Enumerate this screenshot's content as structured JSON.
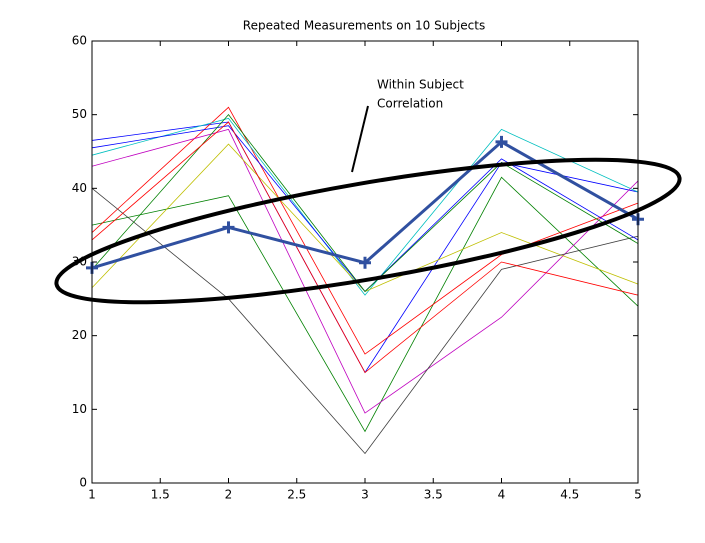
{
  "chart_data": {
    "type": "line",
    "title": "Repeated Measurements on 10 Subjects",
    "annotation": [
      "Within Subject",
      "Correlation"
    ],
    "x": [
      1,
      2,
      3,
      4,
      5
    ],
    "xlim": [
      1,
      5
    ],
    "xticks": [
      1,
      1.5,
      2,
      2.5,
      3,
      3.5,
      4,
      4.5,
      5
    ],
    "ylim": [
      0,
      60
    ],
    "yticks": [
      0,
      10,
      20,
      30,
      40,
      50,
      60
    ],
    "grid": false,
    "series": [
      {
        "color": "#0000ff",
        "values": [
          46.5,
          49,
          15,
          43.5,
          39.5
        ]
      },
      {
        "color": "#008000",
        "values": [
          35,
          39,
          7,
          41.5,
          24
        ]
      },
      {
        "color": "#ff0000",
        "values": [
          34,
          51,
          17.5,
          31,
          38
        ]
      },
      {
        "color": "#00bfbf",
        "values": [
          44.5,
          49.5,
          25.5,
          48,
          39.5
        ]
      },
      {
        "color": "#bf00bf",
        "values": [
          43,
          48,
          9.5,
          22.5,
          41
        ]
      },
      {
        "color": "#bfbf00",
        "values": [
          26.5,
          46,
          26,
          34,
          27
        ]
      },
      {
        "color": "#404040",
        "values": [
          40,
          25,
          4,
          29,
          33.5
        ]
      },
      {
        "color": "#0000ff",
        "values": [
          45.5,
          48.5,
          26,
          44,
          33
        ]
      },
      {
        "color": "#008000",
        "values": [
          29,
          50,
          26,
          43.5,
          32.5
        ]
      },
      {
        "color": "#ff0000",
        "values": [
          33,
          49,
          15,
          30,
          25.5
        ]
      },
      {
        "color": "#3050a0",
        "width": 3,
        "marker": "+",
        "values": [
          29.2,
          34.7,
          29.9,
          46.3,
          35.8
        ]
      }
    ]
  }
}
